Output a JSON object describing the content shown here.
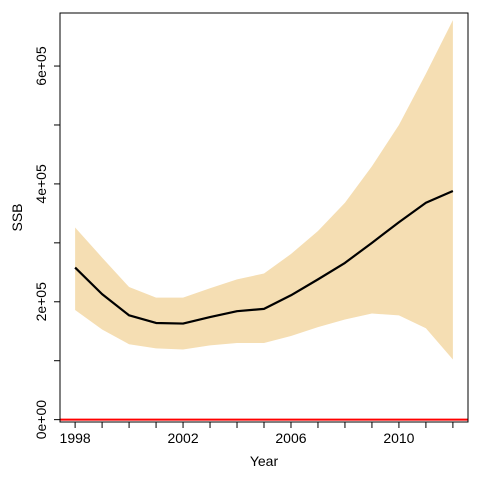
{
  "chart_data": {
    "type": "line",
    "title": "",
    "xlabel": "Year",
    "ylabel": "SSB",
    "xlim": [
      1997.44,
      2012.56
    ],
    "ylim": [
      -4000,
      690000
    ],
    "x_ticks": [
      1998,
      1999,
      2000,
      2001,
      2002,
      2003,
      2004,
      2005,
      2006,
      2007,
      2008,
      2009,
      2010,
      2011,
      2012
    ],
    "x_tick_labels": [
      {
        "value": 1998,
        "label": "1998"
      },
      {
        "value": 2002,
        "label": "2002"
      },
      {
        "value": 2006,
        "label": "2006"
      },
      {
        "value": 2010,
        "label": "2010"
      }
    ],
    "y_ticks": [
      0,
      100000,
      200000,
      300000,
      400000,
      500000,
      600000
    ],
    "y_tick_labels": [
      {
        "value": 0,
        "label": "0e+00"
      },
      {
        "value": 200000,
        "label": "2e+05"
      },
      {
        "value": 400000,
        "label": "4e+05"
      },
      {
        "value": 600000,
        "label": "6e+05"
      }
    ],
    "grid": false,
    "x": [
      1998,
      1999,
      2000,
      2001,
      2002,
      2003,
      2004,
      2005,
      2006,
      2007,
      2008,
      2009,
      2010,
      2011,
      2012
    ],
    "series": [
      {
        "color": "#000000",
        "values": [
          258000,
          213000,
          177000,
          164000,
          163000,
          174000,
          184000,
          188000,
          211000,
          238000,
          266000,
          300000,
          335000,
          368000,
          388000
        ]
      }
    ],
    "band": {
      "color": "#F5DEB3",
      "lower": [
        186000,
        153000,
        128000,
        121000,
        119000,
        126000,
        130000,
        130000,
        142000,
        157000,
        170000,
        180000,
        177000,
        155000,
        102000
      ],
      "upper": [
        326000,
        275000,
        225000,
        207000,
        207000,
        223000,
        238000,
        248000,
        281000,
        320000,
        368000,
        430000,
        500000,
        587000,
        678000
      ]
    },
    "reference_line": {
      "value": 0,
      "color": "#FF0000"
    }
  }
}
